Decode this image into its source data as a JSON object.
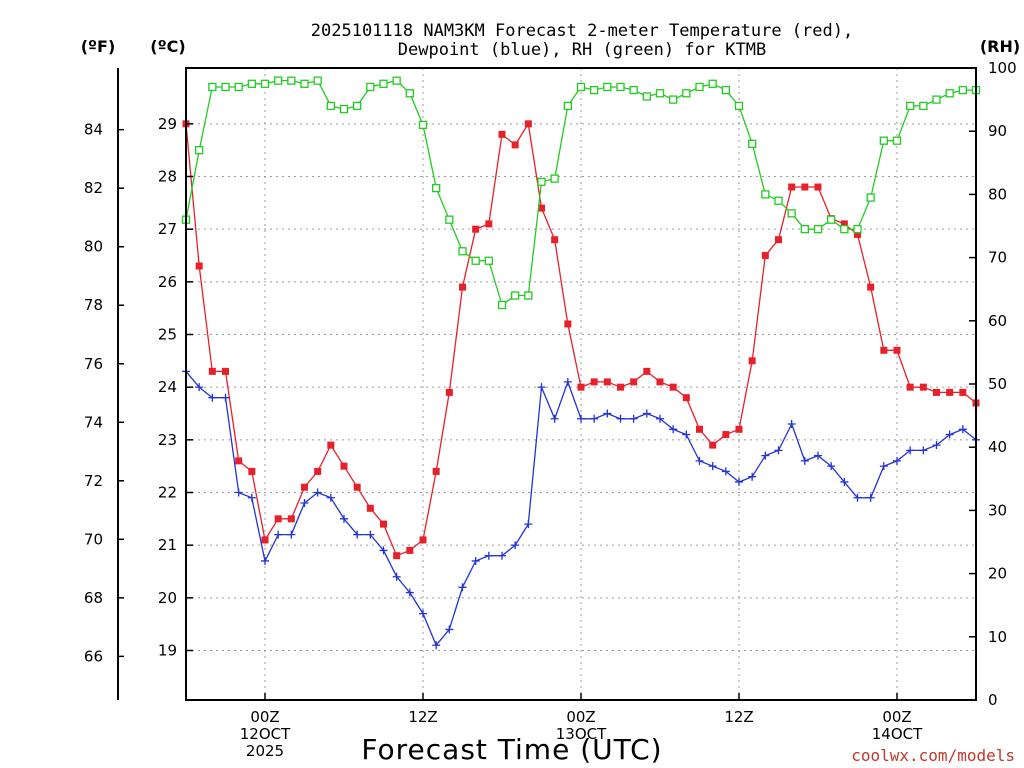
{
  "chart_data": {
    "type": "line",
    "title_line1": "2025101118 NAM3KM Forecast 2-meter Temperature (red),",
    "title_line2": "Dewpoint (blue), RH (green) for KTMB",
    "units": {
      "fahrenheit": "(ºF)",
      "celsius": "(ºC)",
      "rh": "(RH)"
    },
    "xlabel": "Forecast Time (UTC)",
    "credit": "coolwx.com/models",
    "x_unit": "hours since 2025-10-11 18Z",
    "xlim": [
      0,
      60
    ],
    "x_ticks": [
      {
        "x": 6,
        "lines": [
          "00Z",
          "12OCT",
          "2025"
        ]
      },
      {
        "x": 18,
        "lines": [
          "12Z"
        ]
      },
      {
        "x": 30,
        "lines": [
          "00Z",
          "13OCT"
        ]
      },
      {
        "x": 42,
        "lines": [
          "12Z"
        ]
      },
      {
        "x": 54,
        "lines": [
          "00Z",
          "14OCT"
        ]
      }
    ],
    "celsius_axis": {
      "ylim": [
        18.06,
        30.06
      ],
      "ticks": [
        19,
        20,
        21,
        22,
        23,
        24,
        25,
        26,
        27,
        28,
        29
      ]
    },
    "fahrenheit_axis": {
      "ticks": [
        66,
        68,
        70,
        72,
        74,
        76,
        78,
        80,
        82,
        84
      ]
    },
    "rh_axis": {
      "ylim": [
        0,
        100
      ],
      "ticks": [
        0,
        10,
        20,
        30,
        40,
        50,
        60,
        70,
        80,
        90,
        100
      ]
    },
    "x": [
      0,
      1,
      2,
      3,
      4,
      5,
      6,
      7,
      8,
      9,
      10,
      11,
      12,
      13,
      14,
      15,
      16,
      17,
      18,
      19,
      20,
      21,
      22,
      23,
      24,
      25,
      26,
      27,
      28,
      29,
      30,
      31,
      32,
      33,
      34,
      35,
      36,
      37,
      38,
      39,
      40,
      41,
      42,
      43,
      44,
      45,
      46,
      47,
      48,
      49,
      50,
      51,
      52,
      53,
      54,
      55,
      56,
      57,
      58,
      59,
      60
    ],
    "series": [
      {
        "name": "Temperature",
        "units": "°C",
        "color": "#e8202a",
        "marker": "square-filled",
        "values": [
          29.0,
          26.3,
          24.3,
          24.3,
          22.6,
          22.4,
          21.1,
          21.5,
          21.5,
          22.1,
          22.4,
          22.9,
          22.5,
          22.1,
          21.7,
          21.4,
          20.8,
          20.9,
          21.1,
          22.4,
          23.9,
          25.9,
          27.0,
          27.1,
          28.8,
          28.6,
          29.0,
          27.4,
          26.8,
          25.2,
          24.0,
          24.1,
          24.1,
          24.0,
          24.1,
          24.3,
          24.1,
          24.0,
          23.8,
          23.2,
          22.9,
          23.1,
          23.2,
          24.5,
          26.5,
          26.8,
          27.8,
          27.8,
          27.8,
          27.2,
          27.1,
          26.9,
          25.9,
          24.7,
          24.7,
          24.0,
          24.0,
          23.9,
          23.9,
          23.9,
          23.7
        ]
      },
      {
        "name": "Dewpoint",
        "units": "°C",
        "color": "#2233d9",
        "marker": "plus",
        "values": [
          24.3,
          24.0,
          23.8,
          23.8,
          22.0,
          21.9,
          20.7,
          21.2,
          21.2,
          21.8,
          22.0,
          21.9,
          21.5,
          21.2,
          21.2,
          20.9,
          20.4,
          20.1,
          19.7,
          19.1,
          19.4,
          20.2,
          20.7,
          20.8,
          20.8,
          21.0,
          21.4,
          24.0,
          23.4,
          24.1,
          23.4,
          23.4,
          23.5,
          23.4,
          23.4,
          23.5,
          23.4,
          23.2,
          23.1,
          22.6,
          22.5,
          22.4,
          22.2,
          22.3,
          22.7,
          22.8,
          23.3,
          22.6,
          22.7,
          22.5,
          22.2,
          21.9,
          21.9,
          22.5,
          22.6,
          22.8,
          22.8,
          22.9,
          23.1,
          23.2,
          23.0
        ]
      },
      {
        "name": "RH",
        "units": "%",
        "color": "#22cc22",
        "marker": "square-open",
        "axis": "rh",
        "values": [
          76,
          87,
          97,
          97,
          97,
          97.5,
          97.5,
          98,
          98,
          97.5,
          98,
          94,
          93.5,
          94,
          97,
          97.5,
          98,
          96,
          91,
          81,
          76,
          71,
          69.5,
          69.5,
          62.5,
          64,
          64,
          82,
          82.5,
          94,
          97,
          96.5,
          97,
          97,
          96.5,
          95.5,
          96,
          95,
          96,
          97,
          97.5,
          96.5,
          94,
          88,
          80,
          79,
          77,
          74.5,
          74.5,
          76,
          74.5,
          74.5,
          79.5,
          88.5,
          88.5,
          94,
          94,
          95,
          96,
          96.5,
          96.5
        ]
      }
    ]
  }
}
